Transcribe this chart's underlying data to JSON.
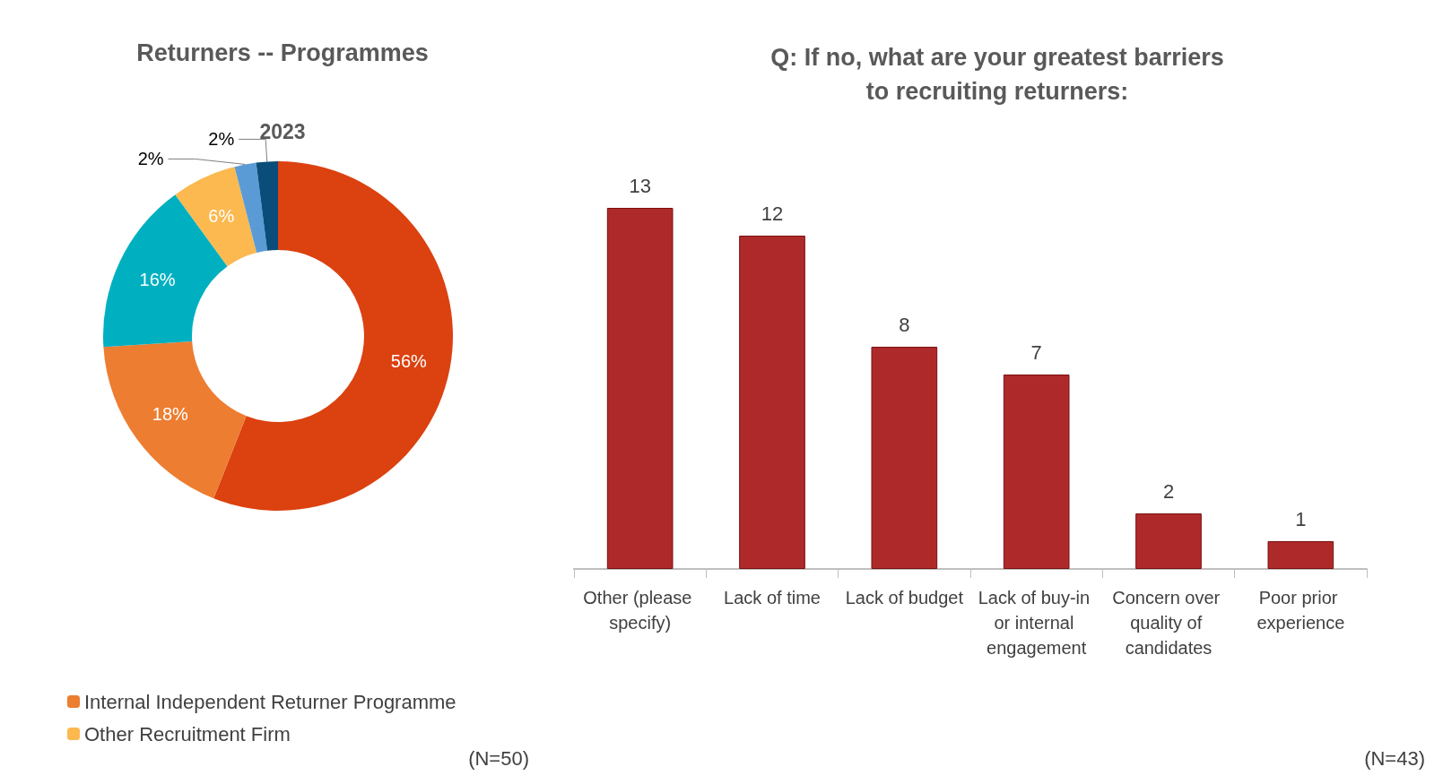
{
  "chart_data": [
    {
      "type": "donut",
      "title": "Returners -- Programmes",
      "subtitle": "2023",
      "categories": [
        null,
        "Internal Independent Returner Programme",
        null,
        "Other Recruitment Firm",
        null,
        null
      ],
      "values": [
        56,
        18,
        16,
        6,
        2,
        2
      ],
      "value_labels": [
        "56%",
        "18%",
        "16%",
        "6%",
        "2%",
        "2%"
      ],
      "colors": [
        "#dc4110",
        "#ed7d31",
        "#00b0c0",
        "#fbb950",
        "#5b9bd5",
        "#0a4d7a"
      ],
      "legend": "bottom left",
      "annotations": [
        "(N=50)"
      ]
    },
    {
      "type": "bar",
      "title": "Q: If no, what are your greatest barriers\nto recruiting returners:",
      "categories": [
        "Other (please specify)",
        "Lack of time",
        "Lack of budget",
        "Lack of buy-in or internal engagement",
        "Concern over quality of candidates",
        "Poor prior experience"
      ],
      "values": [
        13,
        12,
        8,
        7,
        2,
        1
      ],
      "color": "#ae2a2a",
      "data_labels": true,
      "tick_labels": "x",
      "annotations": [
        "(N=43)"
      ]
    }
  ]
}
